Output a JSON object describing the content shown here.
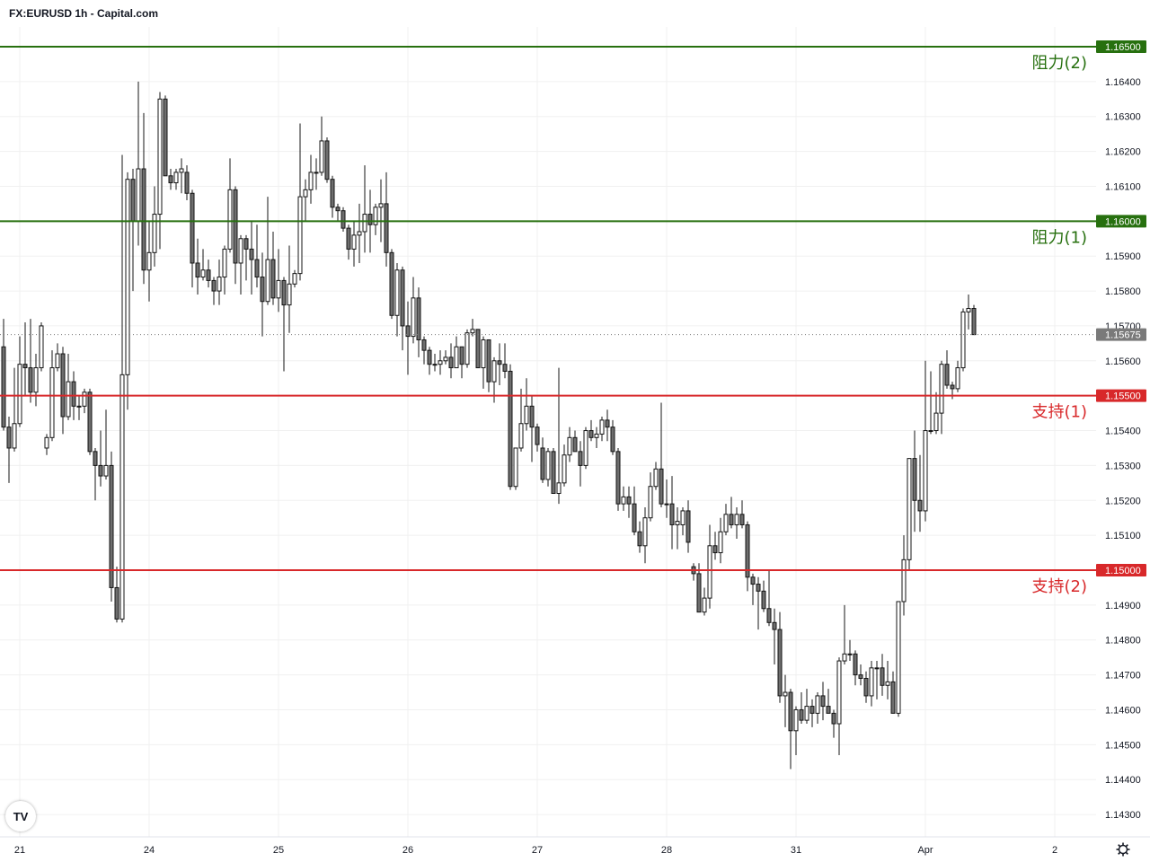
{
  "header": {
    "title": "FX:EURUSD 1h - Capital.com"
  },
  "logo": {
    "text": "TV"
  },
  "icons": {
    "settings": "gear-icon",
    "logo": "tradingview-logo"
  },
  "colors": {
    "resistance": "#27700f",
    "support": "#d8282a",
    "bull_body": "#ffffff",
    "bear_body": "#6e6e6e",
    "wick": "#141414",
    "current_price": "#7a7a7a",
    "grid": "#f0f0f0"
  },
  "chart_data": {
    "type": "candlestick",
    "symbol": "FX:EURUSD",
    "interval": "1h",
    "ylim": [
      1.1425,
      1.166
    ],
    "grid": true,
    "y_ticks": [
      "1.16400",
      "1.16300",
      "1.16200",
      "1.16100",
      "1.15900",
      "1.15800",
      "1.15700",
      "1.15600",
      "1.15400",
      "1.15300",
      "1.15200",
      "1.15100",
      "1.14900",
      "1.14800",
      "1.14700",
      "1.14600",
      "1.14500",
      "1.14400",
      "1.14300"
    ],
    "x_ticks": [
      {
        "label": "21",
        "bar": 3
      },
      {
        "label": "24",
        "bar": 27
      },
      {
        "label": "25",
        "bar": 51
      },
      {
        "label": "26",
        "bar": 75
      },
      {
        "label": "27",
        "bar": 99
      },
      {
        "label": "28",
        "bar": 123
      },
      {
        "label": "31",
        "bar": 147
      },
      {
        "label": "Apr",
        "bar": 171
      },
      {
        "label": "2",
        "bar": 195
      }
    ],
    "current_price": {
      "value": 1.15675,
      "label": "1.15675"
    },
    "levels": [
      {
        "name": "阻力(2)",
        "value": 1.165,
        "label": "1.16500",
        "kind": "resistance"
      },
      {
        "name": "阻力(1)",
        "value": 1.16,
        "label": "1.16000",
        "kind": "resistance"
      },
      {
        "name": "支持(1)",
        "value": 1.155,
        "label": "1.15500",
        "kind": "support"
      },
      {
        "name": "支持(2)",
        "value": 1.15,
        "label": "1.15000",
        "kind": "support"
      }
    ],
    "candles_ohlc": [
      [
        1.1564,
        1.1572,
        1.154,
        1.1541
      ],
      [
        1.1541,
        1.1544,
        1.1525,
        1.1535
      ],
      [
        1.1535,
        1.1558,
        1.1534,
        1.1542
      ],
      [
        1.1542,
        1.1567,
        1.1541,
        1.1559
      ],
      [
        1.1559,
        1.1571,
        1.155,
        1.1558
      ],
      [
        1.1558,
        1.1572,
        1.1548,
        1.1551
      ],
      [
        1.1551,
        1.1562,
        1.1547,
        1.1558
      ],
      [
        1.1558,
        1.1571,
        1.1557,
        1.157
      ],
      [
        1.1535,
        1.1539,
        1.1533,
        1.1538
      ],
      [
        1.1538,
        1.1563,
        1.1537,
        1.1558
      ],
      [
        1.1558,
        1.1565,
        1.1557,
        1.1562
      ],
      [
        1.1562,
        1.1564,
        1.1539,
        1.1544
      ],
      [
        1.1544,
        1.1562,
        1.1543,
        1.1554
      ],
      [
        1.1554,
        1.1557,
        1.1543,
        1.1547
      ],
      [
        1.1547,
        1.155,
        1.1543,
        1.1547
      ],
      [
        1.1547,
        1.1552,
        1.1545,
        1.1551
      ],
      [
        1.1551,
        1.1552,
        1.1533,
        1.1534
      ],
      [
        1.1534,
        1.1535,
        1.152,
        1.153
      ],
      [
        1.153,
        1.154,
        1.1524,
        1.1527
      ],
      [
        1.1527,
        1.1546,
        1.1526,
        1.153
      ],
      [
        1.153,
        1.1534,
        1.1491,
        1.1495
      ],
      [
        1.1495,
        1.1501,
        1.1485,
        1.1486
      ],
      [
        1.1486,
        1.1619,
        1.1485,
        1.1556
      ],
      [
        1.1556,
        1.1614,
        1.1546,
        1.1612
      ],
      [
        1.1612,
        1.1615,
        1.158,
        1.16
      ],
      [
        1.16,
        1.164,
        1.1593,
        1.1615
      ],
      [
        1.1615,
        1.1631,
        1.1582,
        1.1586
      ],
      [
        1.1586,
        1.16,
        1.1577,
        1.1591
      ],
      [
        1.1591,
        1.161,
        1.1587,
        1.1602
      ],
      [
        1.1602,
        1.1637,
        1.1592,
        1.1635
      ],
      [
        1.1635,
        1.1636,
        1.1613,
        1.1613
      ],
      [
        1.1613,
        1.1615,
        1.1609,
        1.1611
      ],
      [
        1.1611,
        1.1615,
        1.1609,
        1.1614
      ],
      [
        1.1614,
        1.1618,
        1.1608,
        1.1615
      ],
      [
        1.1614,
        1.1616,
        1.1606,
        1.1608
      ],
      [
        1.1608,
        1.1609,
        1.1581,
        1.1588
      ],
      [
        1.1588,
        1.1595,
        1.1579,
        1.1584
      ],
      [
        1.1584,
        1.1592,
        1.1583,
        1.1586
      ],
      [
        1.1586,
        1.1589,
        1.1581,
        1.1583
      ],
      [
        1.1583,
        1.1584,
        1.1576,
        1.158
      ],
      [
        1.158,
        1.1589,
        1.1576,
        1.1584
      ],
      [
        1.1584,
        1.1593,
        1.1579,
        1.1592
      ],
      [
        1.1592,
        1.1618,
        1.1591,
        1.1609
      ],
      [
        1.1609,
        1.161,
        1.1582,
        1.1588
      ],
      [
        1.1588,
        1.1596,
        1.1579,
        1.1595
      ],
      [
        1.1595,
        1.1596,
        1.1583,
        1.1592
      ],
      [
        1.1592,
        1.16,
        1.1579,
        1.1589
      ],
      [
        1.1589,
        1.1599,
        1.1581,
        1.1584
      ],
      [
        1.1584,
        1.1591,
        1.1567,
        1.1577
      ],
      [
        1.1577,
        1.1607,
        1.1576,
        1.1589
      ],
      [
        1.1589,
        1.1597,
        1.1576,
        1.1578
      ],
      [
        1.1578,
        1.1592,
        1.1574,
        1.1583
      ],
      [
        1.1583,
        1.1584,
        1.1557,
        1.1576
      ],
      [
        1.1576,
        1.1593,
        1.1568,
        1.1582
      ],
      [
        1.1582,
        1.1586,
        1.1581,
        1.1585
      ],
      [
        1.1585,
        1.1628,
        1.1583,
        1.1607
      ],
      [
        1.1607,
        1.1612,
        1.16,
        1.1609
      ],
      [
        1.1609,
        1.1619,
        1.1605,
        1.1614
      ],
      [
        1.1614,
        1.1618,
        1.1609,
        1.1614
      ],
      [
        1.1614,
        1.163,
        1.1613,
        1.1623
      ],
      [
        1.1623,
        1.1624,
        1.1611,
        1.1612
      ],
      [
        1.1612,
        1.1613,
        1.1601,
        1.1604
      ],
      [
        1.1604,
        1.1605,
        1.16,
        1.1603
      ],
      [
        1.1603,
        1.1604,
        1.1597,
        1.1598
      ],
      [
        1.1598,
        1.1599,
        1.1589,
        1.1592
      ],
      [
        1.1592,
        1.16,
        1.1587,
        1.1596
      ],
      [
        1.1596,
        1.1605,
        1.1588,
        1.1597
      ],
      [
        1.1597,
        1.1616,
        1.1591,
        1.1602
      ],
      [
        1.1602,
        1.1609,
        1.1591,
        1.1599
      ],
      [
        1.1599,
        1.1605,
        1.1596,
        1.1604
      ],
      [
        1.1604,
        1.1612,
        1.1594,
        1.1605
      ],
      [
        1.1605,
        1.1614,
        1.1587,
        1.1591
      ],
      [
        1.1591,
        1.1592,
        1.1572,
        1.1573
      ],
      [
        1.1573,
        1.1588,
        1.1567,
        1.1586
      ],
      [
        1.1586,
        1.1587,
        1.1563,
        1.157
      ],
      [
        1.157,
        1.1577,
        1.1556,
        1.1567
      ],
      [
        1.1567,
        1.1584,
        1.1565,
        1.1578
      ],
      [
        1.1578,
        1.1581,
        1.1561,
        1.1566
      ],
      [
        1.1566,
        1.1567,
        1.1559,
        1.1563
      ],
      [
        1.1563,
        1.1564,
        1.1556,
        1.1559
      ],
      [
        1.1559,
        1.1562,
        1.1557,
        1.1559
      ],
      [
        1.1559,
        1.1563,
        1.1556,
        1.156
      ],
      [
        1.156,
        1.1563,
        1.1559,
        1.1561
      ],
      [
        1.1561,
        1.1565,
        1.1555,
        1.1558
      ],
      [
        1.1558,
        1.1567,
        1.1558,
        1.1564
      ],
      [
        1.1564,
        1.1564,
        1.1555,
        1.1559
      ],
      [
        1.1559,
        1.1569,
        1.1558,
        1.1568
      ],
      [
        1.1568,
        1.1572,
        1.1567,
        1.1569
      ],
      [
        1.1569,
        1.1569,
        1.1558,
        1.1558
      ],
      [
        1.1558,
        1.1567,
        1.1552,
        1.1566
      ],
      [
        1.1566,
        1.1566,
        1.1551,
        1.1554
      ],
      [
        1.1554,
        1.1561,
        1.1548,
        1.156
      ],
      [
        1.156,
        1.1565,
        1.1553,
        1.1559
      ],
      [
        1.1559,
        1.1565,
        1.1555,
        1.1557
      ],
      [
        1.1557,
        1.1559,
        1.1523,
        1.1524
      ],
      [
        1.1524,
        1.1535,
        1.1523,
        1.1535
      ],
      [
        1.1535,
        1.1552,
        1.1534,
        1.1542
      ],
      [
        1.1542,
        1.1555,
        1.154,
        1.1547
      ],
      [
        1.1547,
        1.155,
        1.1531,
        1.1541
      ],
      [
        1.1541,
        1.1542,
        1.1534,
        1.1536
      ],
      [
        1.1535,
        1.1538,
        1.1525,
        1.1526
      ],
      [
        1.1526,
        1.1535,
        1.1524,
        1.1534
      ],
      [
        1.1534,
        1.1535,
        1.1522,
        1.1522
      ],
      [
        1.1522,
        1.1558,
        1.1519,
        1.1525
      ],
      [
        1.1525,
        1.1536,
        1.1524,
        1.1533
      ],
      [
        1.1533,
        1.1541,
        1.1531,
        1.1538
      ],
      [
        1.1538,
        1.154,
        1.1534,
        1.1534
      ],
      [
        1.1534,
        1.1537,
        1.1524,
        1.153
      ],
      [
        1.153,
        1.1541,
        1.1529,
        1.154
      ],
      [
        1.154,
        1.1543,
        1.1537,
        1.1538
      ],
      [
        1.1538,
        1.1541,
        1.1535,
        1.1539
      ],
      [
        1.1539,
        1.1544,
        1.1537,
        1.1543
      ],
      [
        1.1543,
        1.1546,
        1.1537,
        1.1541
      ],
      [
        1.1541,
        1.1543,
        1.1533,
        1.1534
      ],
      [
        1.1534,
        1.1535,
        1.1517,
        1.1519
      ],
      [
        1.1519,
        1.1524,
        1.1517,
        1.1521
      ],
      [
        1.1521,
        1.1524,
        1.1515,
        1.1519
      ],
      [
        1.1519,
        1.1524,
        1.151,
        1.1511
      ],
      [
        1.1511,
        1.1514,
        1.1505,
        1.1507
      ],
      [
        1.1507,
        1.1518,
        1.1502,
        1.1515
      ],
      [
        1.1515,
        1.1528,
        1.1514,
        1.1524
      ],
      [
        1.1524,
        1.1531,
        1.1523,
        1.1529
      ],
      [
        1.1529,
        1.1548,
        1.1518,
        1.1519
      ],
      [
        1.1519,
        1.1526,
        1.1515,
        1.1519
      ],
      [
        1.1519,
        1.1527,
        1.1506,
        1.1513
      ],
      [
        1.1513,
        1.1518,
        1.1506,
        1.1514
      ],
      [
        1.1513,
        1.1518,
        1.151,
        1.1517
      ],
      [
        1.1517,
        1.152,
        1.1505,
        1.1508
      ],
      [
        1.1501,
        1.1502,
        1.1497,
        1.1499
      ],
      [
        1.1499,
        1.1502,
        1.1488,
        1.1488
      ],
      [
        1.1488,
        1.1495,
        1.1487,
        1.1492
      ],
      [
        1.1492,
        1.1513,
        1.1489,
        1.1507
      ],
      [
        1.1507,
        1.1511,
        1.1503,
        1.1505
      ],
      [
        1.1505,
        1.1515,
        1.1502,
        1.1511
      ],
      [
        1.1511,
        1.1519,
        1.151,
        1.1516
      ],
      [
        1.1516,
        1.1521,
        1.1512,
        1.1513
      ],
      [
        1.1513,
        1.1518,
        1.1509,
        1.1516
      ],
      [
        1.1516,
        1.152,
        1.1512,
        1.1513
      ],
      [
        1.1513,
        1.1514,
        1.1494,
        1.1498
      ],
      [
        1.1498,
        1.1499,
        1.149,
        1.1496
      ],
      [
        1.1496,
        1.1498,
        1.1483,
        1.1494
      ],
      [
        1.1494,
        1.1497,
        1.1488,
        1.1489
      ],
      [
        1.1489,
        1.15,
        1.1484,
        1.1485
      ],
      [
        1.1485,
        1.1489,
        1.1473,
        1.1483
      ],
      [
        1.1483,
        1.1488,
        1.1462,
        1.1464
      ],
      [
        1.1464,
        1.147,
        1.1455,
        1.1465
      ],
      [
        1.1465,
        1.1466,
        1.1443,
        1.1454
      ],
      [
        1.1454,
        1.1461,
        1.1447,
        1.146
      ],
      [
        1.146,
        1.1465,
        1.1456,
        1.1457
      ],
      [
        1.1457,
        1.1466,
        1.1456,
        1.1461
      ],
      [
        1.1461,
        1.1463,
        1.1455,
        1.1459
      ],
      [
        1.1459,
        1.1465,
        1.1456,
        1.1464
      ],
      [
        1.1464,
        1.1468,
        1.1457,
        1.1461
      ],
      [
        1.1461,
        1.1466,
        1.1459,
        1.1459
      ],
      [
        1.1459,
        1.146,
        1.1452,
        1.1456
      ],
      [
        1.1456,
        1.1475,
        1.1447,
        1.1474
      ],
      [
        1.1474,
        1.149,
        1.1473,
        1.1476
      ],
      [
        1.1476,
        1.148,
        1.1474,
        1.1476
      ],
      [
        1.1476,
        1.1477,
        1.1467,
        1.147
      ],
      [
        1.147,
        1.1473,
        1.1467,
        1.1469
      ],
      [
        1.1469,
        1.1471,
        1.1462,
        1.1464
      ],
      [
        1.1464,
        1.1474,
        1.1461,
        1.1472
      ],
      [
        1.1472,
        1.1474,
        1.1463,
        1.1472
      ],
      [
        1.1472,
        1.1476,
        1.1464,
        1.1467
      ],
      [
        1.1467,
        1.1474,
        1.1463,
        1.1468
      ],
      [
        1.1468,
        1.1471,
        1.1459,
        1.1459
      ],
      [
        1.1459,
        1.1491,
        1.1458,
        1.1491
      ],
      [
        1.1491,
        1.151,
        1.1487,
        1.1503
      ],
      [
        1.1503,
        1.1532,
        1.15,
        1.1532
      ],
      [
        1.1532,
        1.154,
        1.1511,
        1.152
      ],
      [
        1.152,
        1.1533,
        1.1511,
        1.1517
      ],
      [
        1.1517,
        1.156,
        1.1514,
        1.154
      ],
      [
        1.154,
        1.1557,
        1.1539,
        1.154
      ],
      [
        1.154,
        1.1551,
        1.1539,
        1.1545
      ],
      [
        1.1545,
        1.156,
        1.1539,
        1.1559
      ],
      [
        1.1559,
        1.1563,
        1.1552,
        1.1553
      ],
      [
        1.1553,
        1.1554,
        1.1549,
        1.1552
      ],
      [
        1.1552,
        1.156,
        1.1551,
        1.1558
      ],
      [
        1.1558,
        1.1575,
        1.1557,
        1.1574
      ],
      [
        1.1574,
        1.1579,
        1.1569,
        1.1575
      ],
      [
        1.1575,
        1.1576,
        1.15675,
        1.15675
      ]
    ]
  }
}
